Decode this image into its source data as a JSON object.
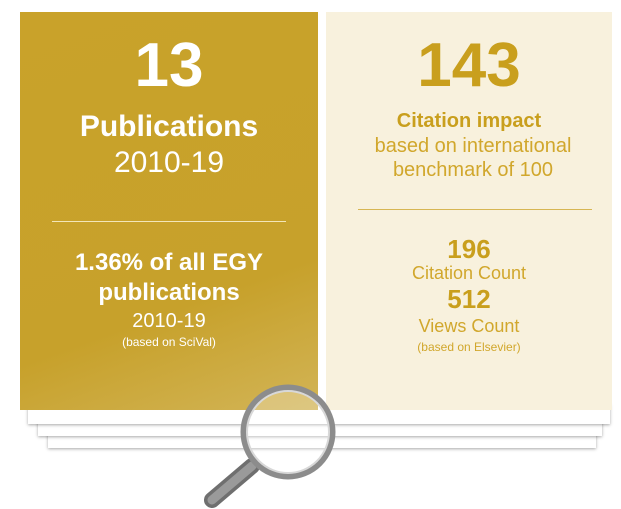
{
  "left_panel": {
    "count": 13,
    "label": "Publications",
    "period": "2010-19",
    "share": "1.36% of all EGY publications",
    "share_period": "2010-19",
    "source": "(based on SciVal)"
  },
  "right_panel": {
    "impact": 143,
    "impact_label": "Citation impact",
    "impact_note": "based on international benchmark of 100",
    "citations": 196,
    "citations_label": "Citation Count",
    "views": 512,
    "views_label": "Views Count",
    "source": "(based on Elsevier)"
  }
}
